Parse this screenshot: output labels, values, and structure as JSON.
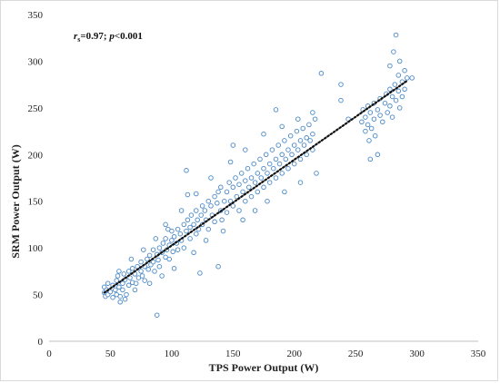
{
  "chart_data": {
    "type": "scatter",
    "title": "",
    "xlabel": "TPS Power Output (W)",
    "ylabel": "SRM Power Output (W)",
    "xlim": [
      0,
      350
    ],
    "ylim": [
      0,
      350
    ],
    "x_ticks": [
      "0",
      "50",
      "100",
      "150",
      "200",
      "250",
      "300",
      "350"
    ],
    "y_ticks": [
      "0",
      "50",
      "100",
      "150",
      "200",
      "250",
      "300",
      "350"
    ],
    "grid": false,
    "legend": "none",
    "annotation": {
      "r_symbol": "r",
      "r_subscript": "s",
      "r_value": "=0.97; ",
      "p_symbol": "p",
      "p_value": "<0.001"
    },
    "marker_color": "#4a89c8",
    "trendline": {
      "style": "dotted",
      "color": "#111111",
      "from": [
        45,
        52
      ],
      "to": [
        292,
        279
      ]
    },
    "series": [
      {
        "points": [
          [
            45,
            52
          ],
          [
            45,
            58
          ],
          [
            46,
            48
          ],
          [
            47,
            55
          ],
          [
            48,
            50
          ],
          [
            50,
            53
          ],
          [
            52,
            47
          ],
          [
            52,
            60
          ],
          [
            54,
            55
          ],
          [
            55,
            50
          ],
          [
            55,
            65
          ],
          [
            56,
            70
          ],
          [
            57,
            58
          ],
          [
            58,
            48
          ],
          [
            60,
            62
          ],
          [
            60,
            55
          ],
          [
            61,
            72
          ],
          [
            62,
            66
          ],
          [
            63,
            50
          ],
          [
            65,
            60
          ],
          [
            65,
            75
          ],
          [
            66,
            68
          ],
          [
            68,
            63
          ],
          [
            68,
            78
          ],
          [
            70,
            72
          ],
          [
            71,
            62
          ],
          [
            72,
            80
          ],
          [
            73,
            68
          ],
          [
            75,
            75
          ],
          [
            75,
            85
          ],
          [
            76,
            70
          ],
          [
            78,
            80
          ],
          [
            78,
            65
          ],
          [
            80,
            88
          ],
          [
            81,
            77
          ],
          [
            82,
            92
          ],
          [
            83,
            82
          ],
          [
            85,
            85
          ],
          [
            85,
            98
          ],
          [
            86,
            75
          ],
          [
            88,
            93
          ],
          [
            89,
            87
          ],
          [
            90,
            100
          ],
          [
            90,
            80
          ],
          [
            92,
            95
          ],
          [
            93,
            105
          ],
          [
            95,
            90
          ],
          [
            95,
            110
          ],
          [
            96,
            98
          ],
          [
            98,
            103
          ],
          [
            98,
            88
          ],
          [
            100,
            108
          ],
          [
            100,
            118
          ],
          [
            101,
            96
          ],
          [
            102,
            112
          ],
          [
            104,
            105
          ],
          [
            105,
            120
          ],
          [
            105,
            98
          ],
          [
            107,
            115
          ],
          [
            108,
            108
          ],
          [
            110,
            125
          ],
          [
            110,
            100
          ],
          [
            112,
            118
          ],
          [
            113,
            130
          ],
          [
            115,
            110
          ],
          [
            115,
            122
          ],
          [
            116,
            135
          ],
          [
            118,
            125
          ],
          [
            120,
            115
          ],
          [
            120,
            140
          ],
          [
            121,
            130
          ],
          [
            122,
            120
          ],
          [
            124,
            135
          ],
          [
            125,
            145
          ],
          [
            125,
            125
          ],
          [
            127,
            140
          ],
          [
            128,
            130
          ],
          [
            130,
            150
          ],
          [
            130,
            120
          ],
          [
            132,
            145
          ],
          [
            133,
            135
          ],
          [
            135,
            155
          ],
          [
            135,
            128
          ],
          [
            137,
            148
          ],
          [
            138,
            160
          ],
          [
            140,
            140
          ],
          [
            140,
            165
          ],
          [
            141,
            130
          ],
          [
            143,
            150
          ],
          [
            145,
            160
          ],
          [
            145,
            138
          ],
          [
            147,
            170
          ],
          [
            148,
            150
          ],
          [
            150,
            165
          ],
          [
            150,
            145
          ],
          [
            152,
            175
          ],
          [
            153,
            155
          ],
          [
            155,
            168
          ],
          [
            155,
            140
          ],
          [
            157,
            180
          ],
          [
            158,
            160
          ],
          [
            160,
            172
          ],
          [
            160,
            150
          ],
          [
            162,
            185
          ],
          [
            163,
            165
          ],
          [
            165,
            175
          ],
          [
            165,
            155
          ],
          [
            167,
            190
          ],
          [
            168,
            170
          ],
          [
            170,
            180
          ],
          [
            170,
            160
          ],
          [
            172,
            195
          ],
          [
            173,
            175
          ],
          [
            175,
            185
          ],
          [
            175,
            165
          ],
          [
            177,
            200
          ],
          [
            178,
            180
          ],
          [
            180,
            190
          ],
          [
            180,
            170
          ],
          [
            182,
            205
          ],
          [
            183,
            185
          ],
          [
            185,
            195
          ],
          [
            185,
            175
          ],
          [
            187,
            210
          ],
          [
            188,
            190
          ],
          [
            190,
            200
          ],
          [
            190,
            180
          ],
          [
            192,
            215
          ],
          [
            193,
            195
          ],
          [
            195,
            205
          ],
          [
            195,
            185
          ],
          [
            197,
            220
          ],
          [
            198,
            200
          ],
          [
            200,
            210
          ],
          [
            200,
            190
          ],
          [
            202,
            225
          ],
          [
            203,
            205
          ],
          [
            205,
            215
          ],
          [
            205,
            195
          ],
          [
            207,
            228
          ],
          [
            208,
            210
          ],
          [
            210,
            218
          ],
          [
            210,
            200
          ],
          [
            212,
            232
          ],
          [
            213,
            215
          ],
          [
            215,
            222
          ],
          [
            215,
            205
          ],
          [
            217,
            238
          ],
          [
            255,
            235
          ],
          [
            256,
            248
          ],
          [
            258,
            240
          ],
          [
            258,
            225
          ],
          [
            260,
            252
          ],
          [
            260,
            232
          ],
          [
            261,
            215
          ],
          [
            262,
            245
          ],
          [
            263,
            228
          ],
          [
            265,
            255
          ],
          [
            265,
            238
          ],
          [
            266,
            220
          ],
          [
            268,
            248
          ],
          [
            270,
            260
          ],
          [
            270,
            242
          ],
          [
            272,
            235
          ],
          [
            274,
            255
          ],
          [
            275,
            265
          ],
          [
            276,
            245
          ],
          [
            278,
            270
          ],
          [
            278,
            252
          ],
          [
            280,
            262
          ],
          [
            280,
            240
          ],
          [
            282,
            275
          ],
          [
            283,
            258
          ],
          [
            285,
            268
          ],
          [
            285,
            285
          ],
          [
            286,
            250
          ],
          [
            288,
            278
          ],
          [
            288,
            262
          ],
          [
            290,
            290
          ],
          [
            290,
            270
          ],
          [
            292,
            282
          ],
          [
            278,
            295
          ],
          [
            281,
            310
          ],
          [
            283,
            328
          ],
          [
            286,
            300
          ],
          [
            62,
            45
          ],
          [
            88,
            28
          ],
          [
            113,
            157
          ],
          [
            112,
            183
          ],
          [
            123,
            73
          ],
          [
            138,
            80
          ],
          [
            150,
            210
          ],
          [
            185,
            248
          ],
          [
            222,
            287
          ],
          [
            238,
            258
          ],
          [
            244,
            238
          ],
          [
            262,
            195
          ],
          [
            268,
            200
          ],
          [
            296,
            282
          ],
          [
            238,
            275
          ],
          [
            102,
            78
          ],
          [
            118,
            95
          ],
          [
            128,
            108
          ],
          [
            142,
            118
          ],
          [
            158,
            130
          ],
          [
            168,
            140
          ],
          [
            178,
            150
          ],
          [
            192,
            160
          ],
          [
            205,
            170
          ],
          [
            218,
            180
          ],
          [
            95,
            125
          ],
          [
            108,
            140
          ],
          [
            120,
            158
          ],
          [
            132,
            175
          ],
          [
            148,
            192
          ],
          [
            160,
            205
          ],
          [
            175,
            222
          ],
          [
            190,
            230
          ],
          [
            203,
            238
          ],
          [
            215,
            245
          ],
          [
            48,
            62
          ],
          [
            58,
            42
          ],
          [
            70,
            55
          ],
          [
            82,
            62
          ],
          [
            92,
            70
          ],
          [
            57,
            75
          ],
          [
            67,
            88
          ],
          [
            77,
            98
          ],
          [
            87,
            110
          ],
          [
            97,
            120
          ]
        ]
      }
    ]
  }
}
